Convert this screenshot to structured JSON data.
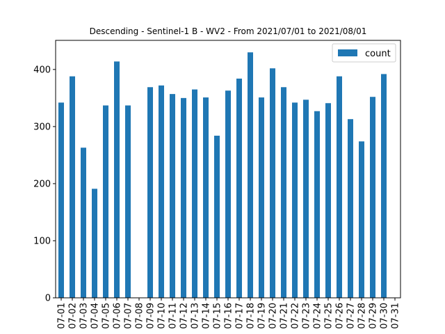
{
  "chart_data": {
    "type": "bar",
    "title": "Descending - Sentinel-1 B - WV2 - From 2021/07/01 to 2021/08/01",
    "xlabel": "",
    "ylabel": "",
    "categories": [
      "07-01",
      "07-02",
      "07-03",
      "07-04",
      "07-05",
      "07-06",
      "07-07",
      "07-08",
      "07-09",
      "07-10",
      "07-11",
      "07-12",
      "07-13",
      "07-14",
      "07-15",
      "07-16",
      "07-17",
      "07-18",
      "07-19",
      "07-20",
      "07-21",
      "07-22",
      "07-23",
      "07-24",
      "07-25",
      "07-26",
      "07-27",
      "07-28",
      "07-29",
      "07-30",
      "07-31"
    ],
    "series": [
      {
        "name": "count",
        "color": "#1f77b4",
        "values": [
          342,
          388,
          263,
          191,
          337,
          414,
          337,
          0,
          369,
          372,
          357,
          350,
          365,
          351,
          284,
          363,
          384,
          430,
          351,
          402,
          369,
          342,
          347,
          327,
          341,
          388,
          313,
          274,
          352,
          392,
          0
        ]
      }
    ],
    "ylim": [
      0,
      451
    ],
    "yticks": [
      0,
      100,
      200,
      300,
      400
    ],
    "legend_position": "top-right",
    "grid": false
  }
}
